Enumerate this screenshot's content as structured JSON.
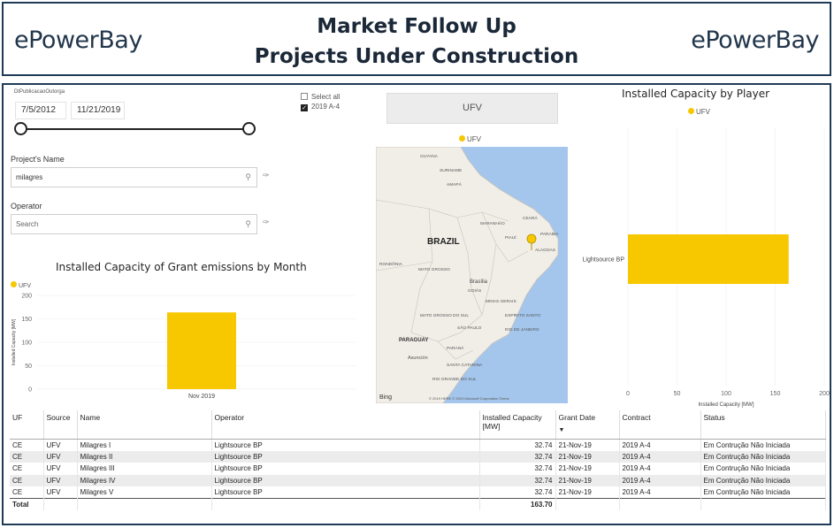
{
  "header": {
    "logo_left": "ePowerBay",
    "logo_right": "ePowerBay",
    "title_line1": "Market Follow Up",
    "title_line2": "Projects Under Construction"
  },
  "date_filter": {
    "label": "DtPublicacaoOutorga",
    "start": "7/5/2012",
    "end": "11/21/2019"
  },
  "contract_filter": {
    "select_all": "Select all",
    "option": "2019 A-4"
  },
  "project_filter": {
    "label": "Project's Name",
    "value": "milagres"
  },
  "operator_filter": {
    "label": "Operator",
    "placeholder": "Search"
  },
  "source_button": {
    "label": "UFV"
  },
  "colors": {
    "ufv": "#f7c700",
    "border": "#1f3b57",
    "map_water": "#a4c6ec",
    "map_land": "#f1eee8"
  },
  "map": {
    "legend": "UFV",
    "country": "BRAZIL",
    "attribution": "© 2019 HERE © 2019 Microsoft Corporation Terms",
    "bing": "Bing",
    "places": [
      "GUYANA",
      "SURINAME",
      "AMAPÁ",
      "MARANHÃO",
      "CEARÁ",
      "PIAUÍ",
      "PARAÍBA",
      "ALAGOAS",
      "RONDÔNIA",
      "MATO GROSSO",
      "GOIÁS",
      "Brasília",
      "MINAS GERAIS",
      "ESPÍRITO SANTO",
      "MATO GROSSO DO SUL",
      "SÃO PAULO",
      "RIO DE JANEIRO",
      "PARAGUAY",
      "PARANÁ",
      "Asunción",
      "SANTA CATARINA",
      "RIO GRANDE DO SUL"
    ]
  },
  "chart_month": {
    "title": "Installed Capacity of Grant emissions by Month",
    "legend": "UFV",
    "ylabel": "Installed Capacity [MW]"
  },
  "chart_player": {
    "title": "Installed Capacity by Player",
    "legend": "UFV",
    "xlabel": "Installed Capacity [MW]"
  },
  "chart_data": [
    {
      "type": "bar",
      "title": "Installed Capacity of Grant emissions by Month",
      "categories": [
        "Nov 2019"
      ],
      "series": [
        {
          "name": "UFV",
          "values": [
            163.7
          ]
        }
      ],
      "ylabel": "Installed Capacity [MW]",
      "ylim": [
        0,
        200
      ],
      "yticks": [
        0,
        50,
        100,
        150,
        200
      ]
    },
    {
      "type": "bar",
      "orientation": "horizontal",
      "title": "Installed Capacity by Player",
      "categories": [
        "Lightsource BP"
      ],
      "series": [
        {
          "name": "UFV",
          "values": [
            163.7
          ]
        }
      ],
      "xlabel": "Installed Capacity [MW]",
      "xlim": [
        0,
        200
      ],
      "xticks": [
        0,
        50,
        100,
        150,
        200
      ]
    }
  ],
  "table": {
    "columns": [
      "UF",
      "Source",
      "Name",
      "Operator",
      "Installed Capacity [MW]",
      "Grant Date",
      "Contract",
      "Status"
    ],
    "rows": [
      [
        "CE",
        "UFV",
        "Milagres I",
        "Lightsource BP",
        "32.74",
        "21-Nov-19",
        "2019 A-4",
        "Em Contrução Não Iniciada"
      ],
      [
        "CE",
        "UFV",
        "Milagres II",
        "Lightsource BP",
        "32.74",
        "21-Nov-19",
        "2019 A-4",
        "Em Contrução Não Iniciada"
      ],
      [
        "CE",
        "UFV",
        "Milagres III",
        "Lightsource BP",
        "32.74",
        "21-Nov-19",
        "2019 A-4",
        "Em Contrução Não Iniciada"
      ],
      [
        "CE",
        "UFV",
        "Milagres IV",
        "Lightsource BP",
        "32.74",
        "21-Nov-19",
        "2019 A-4",
        "Em Contrução Não Iniciada"
      ],
      [
        "CE",
        "UFV",
        "Milagres V",
        "Lightsource BP",
        "32.74",
        "21-Nov-19",
        "2019 A-4",
        "Em Contrução Não Iniciada"
      ]
    ],
    "total_label": "Total",
    "total_value": "163.70"
  }
}
